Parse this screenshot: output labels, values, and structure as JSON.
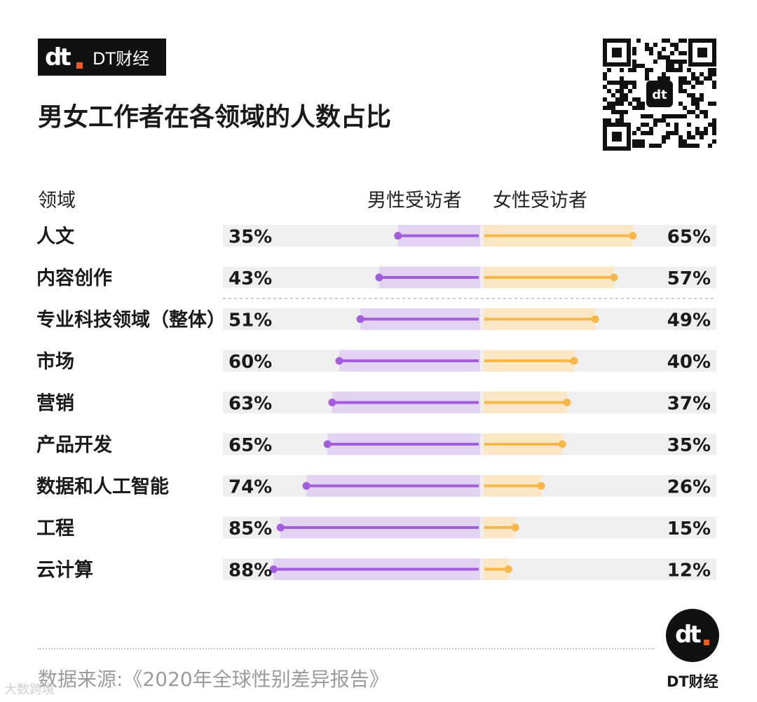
{
  "brand": {
    "mark": "dt",
    "name": "DT财经"
  },
  "title": "男女工作者在各领域的人数占比",
  "headers": {
    "category": "领域",
    "male": "男性受访者",
    "female": "女性受访者"
  },
  "colors": {
    "male_line": "#a35ddb",
    "male_bar": "#e3d3f2",
    "female_line": "#f6b84a",
    "female_bar": "#fbe7c6",
    "track": "#efefef"
  },
  "chart_data": {
    "type": "bar",
    "categories": [
      "人文",
      "内容创作",
      "专业科技领域（整体）",
      "市场",
      "营销",
      "产品开发",
      "数据和人工智能",
      "工程",
      "云计算"
    ],
    "series": [
      {
        "name": "男性受访者",
        "values": [
          35,
          43,
          51,
          60,
          63,
          65,
          74,
          85,
          88
        ]
      },
      {
        "name": "女性受访者",
        "values": [
          65,
          57,
          49,
          40,
          37,
          35,
          26,
          15,
          12
        ]
      }
    ],
    "value_labels_male": [
      "35%",
      "43%",
      "51%",
      "60%",
      "63%",
      "65%",
      "74%",
      "85%",
      "88%"
    ],
    "value_labels_female": [
      "65%",
      "57%",
      "49%",
      "40%",
      "37%",
      "35%",
      "26%",
      "15%",
      "12%"
    ],
    "ylim": [
      0,
      100
    ]
  },
  "footer": {
    "source": "数据来源:《2020年全球性别差异报告》",
    "logo_mark": "dt",
    "logo_name": "DT财经"
  },
  "watermark": "大数跨境",
  "icons": [
    "qr-code-icon",
    "dt-logo-icon"
  ]
}
